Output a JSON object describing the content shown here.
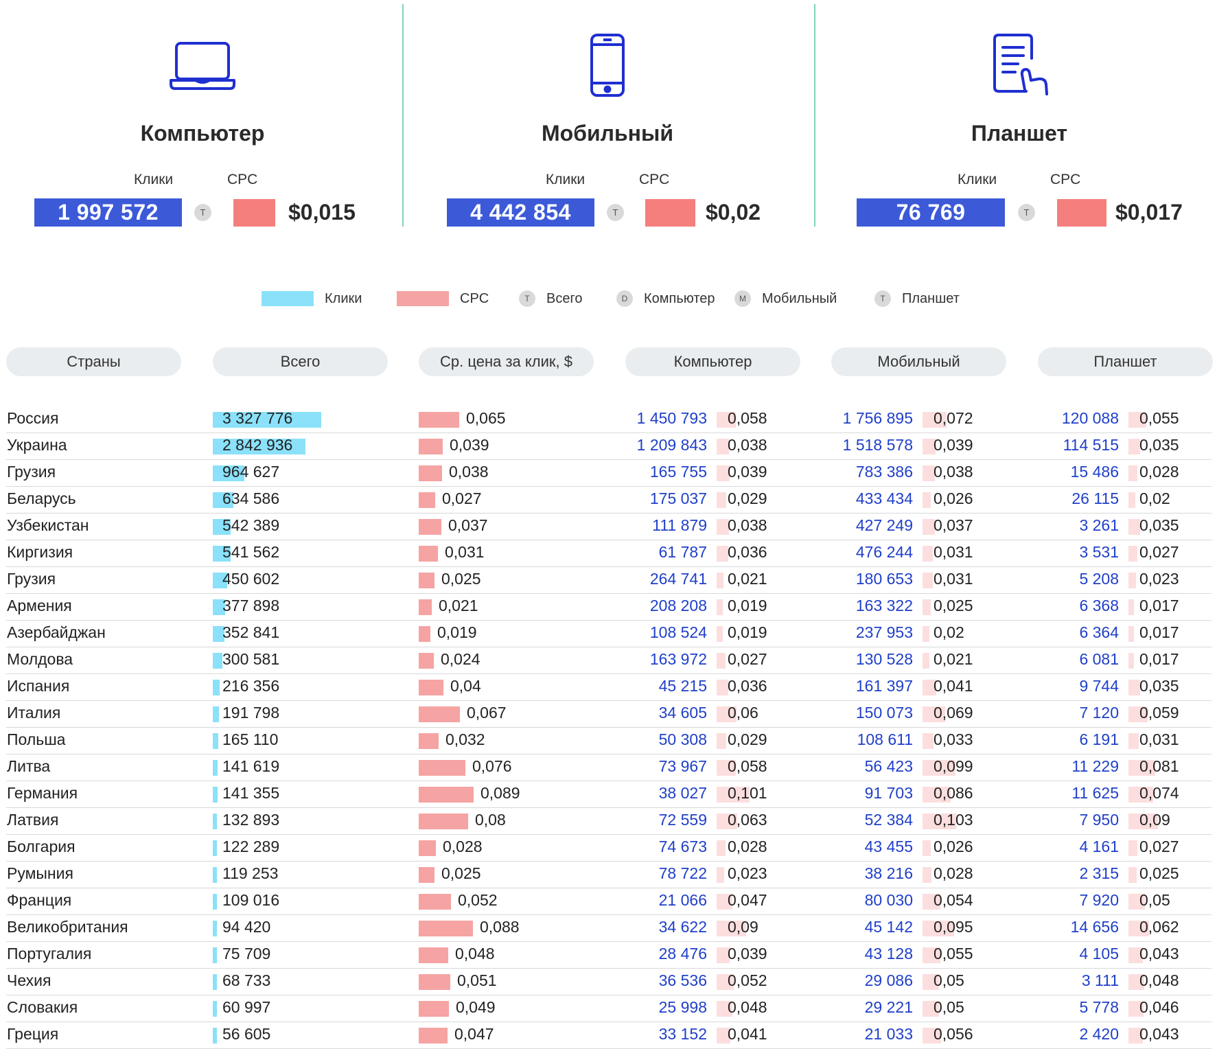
{
  "devices": [
    {
      "title": "Компьютер",
      "icon": "laptop-icon",
      "clicks_label": "Клики",
      "cpc_label": "CPC",
      "clicks": "1 997 572",
      "badge": "T",
      "cpc": "$0,015"
    },
    {
      "title": "Мобильный",
      "icon": "mobile-phone-icon",
      "clicks_label": "Клики",
      "cpc_label": "CPC",
      "clicks": "4 442 854",
      "badge": "T",
      "cpc": "$0,02"
    },
    {
      "title": "Планшет",
      "icon": "tablet-touch-icon",
      "clicks_label": "Клики",
      "cpc_label": "CPC",
      "clicks": "76 769",
      "badge": "T",
      "cpc": "$0,017"
    }
  ],
  "legend": {
    "clicks": "Клики",
    "cpc": "CPC",
    "total_badge": "T",
    "total": "Всего",
    "desktop_badge": "D",
    "desktop": "Компьютер",
    "mobile_badge": "M",
    "mobile": "Мобильный",
    "tablet_badge": "T",
    "tablet": "Планшет"
  },
  "columns": [
    "Страны",
    "Всего",
    "Ср. цена за клик, $",
    "Компьютер",
    "Мобильный",
    "Планшет"
  ],
  "colors": {
    "clicks": "#8ae1f9",
    "cpc": "#f5a3a3",
    "device_cpc": "#fcdede",
    "device_clicks_text": "#1f3fc9",
    "accent_blue": "#3c5ad8",
    "accent_red": "#f47f7c"
  },
  "chart_data": {
    "type": "table",
    "rows": [
      {
        "country": "Россия",
        "total": "3 327 776",
        "total_num": 3327776,
        "cpc": "0,065",
        "cpc_num": 0.065,
        "desktop": "1 450 793",
        "desktop_cpc": "0,058",
        "desktop_cpc_num": 0.058,
        "mobile": "1 756 895",
        "mobile_cpc": "0,072",
        "mobile_cpc_num": 0.072,
        "tablet": "120 088",
        "tablet_cpc": "0,055",
        "tablet_cpc_num": 0.055
      },
      {
        "country": "Украина",
        "total": "2 842 936",
        "total_num": 2842936,
        "cpc": "0,039",
        "cpc_num": 0.039,
        "desktop": "1 209 843",
        "desktop_cpc": "0,038",
        "desktop_cpc_num": 0.038,
        "mobile": "1 518 578",
        "mobile_cpc": "0,039",
        "mobile_cpc_num": 0.039,
        "tablet": "114 515",
        "tablet_cpc": "0,035",
        "tablet_cpc_num": 0.035
      },
      {
        "country": "Грузия",
        "total": "964 627",
        "total_num": 964627,
        "cpc": "0,038",
        "cpc_num": 0.038,
        "desktop": "165 755",
        "desktop_cpc": "0,039",
        "desktop_cpc_num": 0.039,
        "mobile": "783 386",
        "mobile_cpc": "0,038",
        "mobile_cpc_num": 0.038,
        "tablet": "15 486",
        "tablet_cpc": "0,028",
        "tablet_cpc_num": 0.028
      },
      {
        "country": "Беларусь",
        "total": "634 586",
        "total_num": 634586,
        "cpc": "0,027",
        "cpc_num": 0.027,
        "desktop": "175 037",
        "desktop_cpc": "0,029",
        "desktop_cpc_num": 0.029,
        "mobile": "433 434",
        "mobile_cpc": "0,026",
        "mobile_cpc_num": 0.026,
        "tablet": "26 115",
        "tablet_cpc": "0,02",
        "tablet_cpc_num": 0.02
      },
      {
        "country": "Узбекистан",
        "total": "542 389",
        "total_num": 542389,
        "cpc": "0,037",
        "cpc_num": 0.037,
        "desktop": "111 879",
        "desktop_cpc": "0,038",
        "desktop_cpc_num": 0.038,
        "mobile": "427 249",
        "mobile_cpc": "0,037",
        "mobile_cpc_num": 0.037,
        "tablet": "3 261",
        "tablet_cpc": "0,035",
        "tablet_cpc_num": 0.035
      },
      {
        "country": "Киргизия",
        "total": "541 562",
        "total_num": 541562,
        "cpc": "0,031",
        "cpc_num": 0.031,
        "desktop": "61 787",
        "desktop_cpc": "0,036",
        "desktop_cpc_num": 0.036,
        "mobile": "476 244",
        "mobile_cpc": "0,031",
        "mobile_cpc_num": 0.031,
        "tablet": "3 531",
        "tablet_cpc": "0,027",
        "tablet_cpc_num": 0.027
      },
      {
        "country": "Грузия",
        "total": "450 602",
        "total_num": 450602,
        "cpc": "0,025",
        "cpc_num": 0.025,
        "desktop": "264 741",
        "desktop_cpc": "0,021",
        "desktop_cpc_num": 0.021,
        "mobile": "180 653",
        "mobile_cpc": "0,031",
        "mobile_cpc_num": 0.031,
        "tablet": "5 208",
        "tablet_cpc": "0,023",
        "tablet_cpc_num": 0.023
      },
      {
        "country": "Армения",
        "total": "377 898",
        "total_num": 377898,
        "cpc": "0,021",
        "cpc_num": 0.021,
        "desktop": "208 208",
        "desktop_cpc": "0,019",
        "desktop_cpc_num": 0.019,
        "mobile": "163 322",
        "mobile_cpc": "0,025",
        "mobile_cpc_num": 0.025,
        "tablet": "6 368",
        "tablet_cpc": "0,017",
        "tablet_cpc_num": 0.017
      },
      {
        "country": "Азербайджан",
        "total": "352 841",
        "total_num": 352841,
        "cpc": "0,019",
        "cpc_num": 0.019,
        "desktop": "108 524",
        "desktop_cpc": "0,019",
        "desktop_cpc_num": 0.019,
        "mobile": "237 953",
        "mobile_cpc": "0,02",
        "mobile_cpc_num": 0.02,
        "tablet": "6 364",
        "tablet_cpc": "0,017",
        "tablet_cpc_num": 0.017
      },
      {
        "country": "Молдова",
        "total": "300 581",
        "total_num": 300581,
        "cpc": "0,024",
        "cpc_num": 0.024,
        "desktop": "163 972",
        "desktop_cpc": "0,027",
        "desktop_cpc_num": 0.027,
        "mobile": "130 528",
        "mobile_cpc": "0,021",
        "mobile_cpc_num": 0.021,
        "tablet": "6 081",
        "tablet_cpc": "0,017",
        "tablet_cpc_num": 0.017
      },
      {
        "country": "Испания",
        "total": "216 356",
        "total_num": 216356,
        "cpc": "0,04",
        "cpc_num": 0.04,
        "desktop": "45 215",
        "desktop_cpc": "0,036",
        "desktop_cpc_num": 0.036,
        "mobile": "161 397",
        "mobile_cpc": "0,041",
        "mobile_cpc_num": 0.041,
        "tablet": "9 744",
        "tablet_cpc": "0,035",
        "tablet_cpc_num": 0.035
      },
      {
        "country": "Италия",
        "total": "191 798",
        "total_num": 191798,
        "cpc": "0,067",
        "cpc_num": 0.067,
        "desktop": "34 605",
        "desktop_cpc": "0,06",
        "desktop_cpc_num": 0.06,
        "mobile": "150 073",
        "mobile_cpc": "0,069",
        "mobile_cpc_num": 0.069,
        "tablet": "7 120",
        "tablet_cpc": "0,059",
        "tablet_cpc_num": 0.059
      },
      {
        "country": "Польша",
        "total": "165 110",
        "total_num": 165110,
        "cpc": "0,032",
        "cpc_num": 0.032,
        "desktop": "50 308",
        "desktop_cpc": "0,029",
        "desktop_cpc_num": 0.029,
        "mobile": "108 611",
        "mobile_cpc": "0,033",
        "mobile_cpc_num": 0.033,
        "tablet": "6 191",
        "tablet_cpc": "0,031",
        "tablet_cpc_num": 0.031
      },
      {
        "country": "Литва",
        "total": "141 619",
        "total_num": 141619,
        "cpc": "0,076",
        "cpc_num": 0.076,
        "desktop": "73 967",
        "desktop_cpc": "0,058",
        "desktop_cpc_num": 0.058,
        "mobile": "56 423",
        "mobile_cpc": "0,099",
        "mobile_cpc_num": 0.099,
        "tablet": "11 229",
        "tablet_cpc": "0,081",
        "tablet_cpc_num": 0.081
      },
      {
        "country": "Германия",
        "total": "141 355",
        "total_num": 141355,
        "cpc": "0,089",
        "cpc_num": 0.089,
        "desktop": "38 027",
        "desktop_cpc": "0,101",
        "desktop_cpc_num": 0.101,
        "mobile": "91 703",
        "mobile_cpc": "0,086",
        "mobile_cpc_num": 0.086,
        "tablet": "11 625",
        "tablet_cpc": "0,074",
        "tablet_cpc_num": 0.074
      },
      {
        "country": "Латвия",
        "total": "132 893",
        "total_num": 132893,
        "cpc": "0,08",
        "cpc_num": 0.08,
        "desktop": "72 559",
        "desktop_cpc": "0,063",
        "desktop_cpc_num": 0.063,
        "mobile": "52 384",
        "mobile_cpc": "0,103",
        "mobile_cpc_num": 0.103,
        "tablet": "7 950",
        "tablet_cpc": "0,09",
        "tablet_cpc_num": 0.09
      },
      {
        "country": "Болгария",
        "total": "122 289",
        "total_num": 122289,
        "cpc": "0,028",
        "cpc_num": 0.028,
        "desktop": "74 673",
        "desktop_cpc": "0,028",
        "desktop_cpc_num": 0.028,
        "mobile": "43 455",
        "mobile_cpc": "0,026",
        "mobile_cpc_num": 0.026,
        "tablet": "4 161",
        "tablet_cpc": "0,027",
        "tablet_cpc_num": 0.027
      },
      {
        "country": "Румыния",
        "total": "119 253",
        "total_num": 119253,
        "cpc": "0,025",
        "cpc_num": 0.025,
        "desktop": "78 722",
        "desktop_cpc": "0,023",
        "desktop_cpc_num": 0.023,
        "mobile": "38 216",
        "mobile_cpc": "0,028",
        "mobile_cpc_num": 0.028,
        "tablet": "2 315",
        "tablet_cpc": "0,025",
        "tablet_cpc_num": 0.025
      },
      {
        "country": "Франция",
        "total": "109 016",
        "total_num": 109016,
        "cpc": "0,052",
        "cpc_num": 0.052,
        "desktop": "21 066",
        "desktop_cpc": "0,047",
        "desktop_cpc_num": 0.047,
        "mobile": "80 030",
        "mobile_cpc": "0,054",
        "mobile_cpc_num": 0.054,
        "tablet": "7 920",
        "tablet_cpc": "0,05",
        "tablet_cpc_num": 0.05
      },
      {
        "country": "Великобритания",
        "total": "94 420",
        "total_num": 94420,
        "cpc": "0,088",
        "cpc_num": 0.088,
        "desktop": "34 622",
        "desktop_cpc": "0,09",
        "desktop_cpc_num": 0.09,
        "mobile": "45 142",
        "mobile_cpc": "0,095",
        "mobile_cpc_num": 0.095,
        "tablet": "14 656",
        "tablet_cpc": "0,062",
        "tablet_cpc_num": 0.062
      },
      {
        "country": "Португалия",
        "total": "75 709",
        "total_num": 75709,
        "cpc": "0,048",
        "cpc_num": 0.048,
        "desktop": "28 476",
        "desktop_cpc": "0,039",
        "desktop_cpc_num": 0.039,
        "mobile": "43 128",
        "mobile_cpc": "0,055",
        "mobile_cpc_num": 0.055,
        "tablet": "4 105",
        "tablet_cpc": "0,043",
        "tablet_cpc_num": 0.043
      },
      {
        "country": "Чехия",
        "total": "68 733",
        "total_num": 68733,
        "cpc": "0,051",
        "cpc_num": 0.051,
        "desktop": "36 536",
        "desktop_cpc": "0,052",
        "desktop_cpc_num": 0.052,
        "mobile": "29 086",
        "mobile_cpc": "0,05",
        "mobile_cpc_num": 0.05,
        "tablet": "3 111",
        "tablet_cpc": "0,048",
        "tablet_cpc_num": 0.048
      },
      {
        "country": "Словакия",
        "total": "60 997",
        "total_num": 60997,
        "cpc": "0,049",
        "cpc_num": 0.049,
        "desktop": "25 998",
        "desktop_cpc": "0,048",
        "desktop_cpc_num": 0.048,
        "mobile": "29 221",
        "mobile_cpc": "0,05",
        "mobile_cpc_num": 0.05,
        "tablet": "5 778",
        "tablet_cpc": "0,046",
        "tablet_cpc_num": 0.046
      },
      {
        "country": "Греция",
        "total": "56 605",
        "total_num": 56605,
        "cpc": "0,047",
        "cpc_num": 0.047,
        "desktop": "33 152",
        "desktop_cpc": "0,041",
        "desktop_cpc_num": 0.041,
        "mobile": "21 033",
        "mobile_cpc": "0,056",
        "mobile_cpc_num": 0.056,
        "tablet": "2 420",
        "tablet_cpc": "0,043",
        "tablet_cpc_num": 0.043
      }
    ]
  }
}
